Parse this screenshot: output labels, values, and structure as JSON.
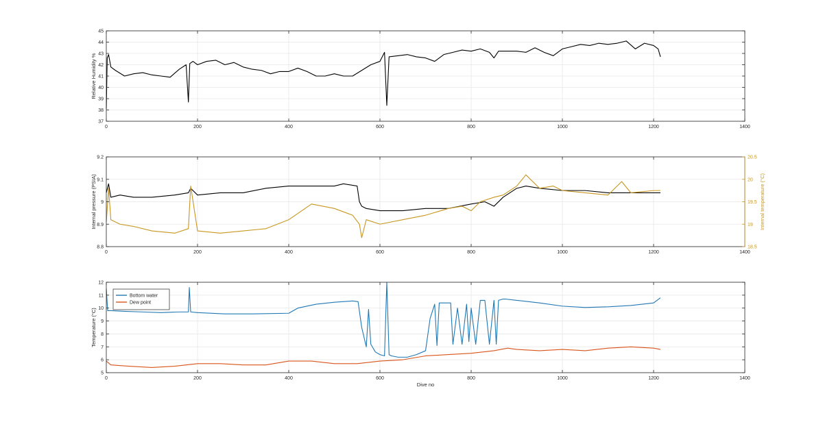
{
  "figure": {
    "colors": {
      "black": "#000000",
      "gold": "#c8961e",
      "blue": "#1f77b4",
      "orange": "#d95319",
      "axis": "#262626",
      "grid": "#e6e6e6"
    }
  },
  "chart_data": [
    {
      "type": "line",
      "title": "",
      "xlabel": "",
      "ylabel": "Relative Humidity %",
      "xlim": [
        0,
        1400
      ],
      "ylim": [
        37,
        45
      ],
      "xticks": [
        0,
        200,
        400,
        600,
        800,
        1000,
        1200,
        1400
      ],
      "yticks": [
        37,
        38,
        39,
        40,
        41,
        42,
        43,
        44,
        45
      ],
      "grid": true,
      "series": [
        {
          "color": "black",
          "x": [
            0,
            2,
            5,
            10,
            20,
            40,
            60,
            80,
            100,
            120,
            140,
            160,
            175,
            180,
            183,
            190,
            200,
            220,
            240,
            260,
            280,
            300,
            320,
            340,
            360,
            380,
            400,
            420,
            440,
            460,
            480,
            500,
            520,
            540,
            560,
            580,
            600,
            610,
            615,
            620,
            640,
            660,
            680,
            700,
            720,
            740,
            760,
            780,
            800,
            820,
            840,
            850,
            860,
            880,
            900,
            920,
            940,
            960,
            980,
            1000,
            1020,
            1040,
            1060,
            1080,
            1100,
            1120,
            1140,
            1160,
            1180,
            1200,
            1210,
            1215
          ],
          "y": [
            38.1,
            42.6,
            42.9,
            41.8,
            41.5,
            41.0,
            41.2,
            41.3,
            41.1,
            41.0,
            40.9,
            41.6,
            42.0,
            38.7,
            42.1,
            42.3,
            42.0,
            42.3,
            42.4,
            42.0,
            42.2,
            41.8,
            41.6,
            41.5,
            41.2,
            41.4,
            41.4,
            41.7,
            41.4,
            41.0,
            41.0,
            41.2,
            41.0,
            41.0,
            41.5,
            42.0,
            42.3,
            43.1,
            38.4,
            42.7,
            42.8,
            42.9,
            42.7,
            42.6,
            42.3,
            42.9,
            43.1,
            43.3,
            43.2,
            43.4,
            43.1,
            42.6,
            43.2,
            43.2,
            43.2,
            43.1,
            43.5,
            43.1,
            42.8,
            43.4,
            43.6,
            43.8,
            43.7,
            43.9,
            43.8,
            43.9,
            44.1,
            43.4,
            43.9,
            43.7,
            43.4,
            42.7
          ]
        }
      ]
    },
    {
      "type": "line",
      "title": "",
      "xlabel": "",
      "ylabel": "Internal pressure (PSIA)",
      "y2label": "Internal temperature (°C)",
      "xlim": [
        0,
        1400
      ],
      "ylim": [
        8.8,
        9.2
      ],
      "y2lim": [
        18.5,
        20.5
      ],
      "xticks": [
        0,
        200,
        400,
        600,
        800,
        1000,
        1200,
        1400
      ],
      "yticks": [
        8.8,
        8.9,
        9,
        9.1,
        9.2
      ],
      "y2ticks": [
        18.5,
        19,
        19.5,
        20,
        20.5
      ],
      "grid": true,
      "series": [
        {
          "color": "black",
          "axis": "left",
          "x": [
            0,
            5,
            10,
            30,
            60,
            100,
            150,
            180,
            185,
            200,
            250,
            300,
            350,
            400,
            450,
            500,
            520,
            550,
            555,
            560,
            570,
            600,
            650,
            700,
            750,
            800,
            830,
            850,
            870,
            900,
            920,
            950,
            1000,
            1050,
            1100,
            1150,
            1200,
            1215
          ],
          "y": [
            9.04,
            9.08,
            9.02,
            9.03,
            9.02,
            9.02,
            9.03,
            9.04,
            9.06,
            9.03,
            9.04,
            9.04,
            9.06,
            9.07,
            9.07,
            9.07,
            9.08,
            9.07,
            9.0,
            8.98,
            8.97,
            8.96,
            8.96,
            8.97,
            8.97,
            8.99,
            9.0,
            8.98,
            9.02,
            9.06,
            9.07,
            9.06,
            9.05,
            9.05,
            9.04,
            9.04,
            9.04,
            9.04
          ]
        },
        {
          "color": "gold",
          "axis": "right",
          "x": [
            0,
            5,
            10,
            30,
            60,
            100,
            150,
            180,
            185,
            200,
            250,
            300,
            350,
            400,
            450,
            500,
            540,
            555,
            560,
            570,
            600,
            650,
            700,
            750,
            780,
            800,
            820,
            850,
            870,
            900,
            920,
            950,
            980,
            1000,
            1050,
            1100,
            1130,
            1150,
            1200,
            1215
          ],
          "y": [
            19.05,
            19.8,
            19.1,
            19.0,
            18.95,
            18.85,
            18.8,
            18.9,
            19.85,
            18.85,
            18.8,
            18.85,
            18.9,
            19.1,
            19.45,
            19.35,
            19.2,
            19.0,
            18.7,
            19.1,
            19.0,
            19.1,
            19.2,
            19.35,
            19.4,
            19.3,
            19.5,
            19.6,
            19.65,
            19.85,
            20.1,
            19.8,
            19.85,
            19.75,
            19.7,
            19.65,
            19.95,
            19.7,
            19.75,
            19.75
          ]
        }
      ]
    },
    {
      "type": "line",
      "title": "",
      "xlabel": "Dive no",
      "ylabel": "Temperature (°C)",
      "xlim": [
        0,
        1400
      ],
      "ylim": [
        5,
        12
      ],
      "xticks": [
        0,
        200,
        400,
        600,
        800,
        1000,
        1200,
        1400
      ],
      "yticks": [
        5,
        6,
        7,
        8,
        9,
        10,
        11,
        12
      ],
      "grid": true,
      "legend_position": "top-left",
      "series": [
        {
          "name": "Bottom water",
          "color": "blue",
          "x": [
            0,
            3,
            10,
            40,
            80,
            120,
            160,
            180,
            182,
            185,
            200,
            260,
            320,
            400,
            420,
            460,
            500,
            540,
            552,
            560,
            570,
            575,
            580,
            590,
            600,
            610,
            615,
            620,
            625,
            640,
            660,
            680,
            700,
            710,
            720,
            725,
            730,
            740,
            755,
            760,
            770,
            780,
            790,
            795,
            800,
            810,
            820,
            830,
            840,
            850,
            855,
            860,
            870,
            875,
            900,
            950,
            1000,
            1050,
            1100,
            1150,
            1200,
            1215
          ],
          "y": [
            11.5,
            9.8,
            9.8,
            9.75,
            9.7,
            9.65,
            9.7,
            9.7,
            11.6,
            9.7,
            9.65,
            9.55,
            9.55,
            9.6,
            10.0,
            10.3,
            10.45,
            10.55,
            10.5,
            8.5,
            7.0,
            9.9,
            7.2,
            6.6,
            6.4,
            6.3,
            12.0,
            6.4,
            6.3,
            6.2,
            6.2,
            6.4,
            6.7,
            9.2,
            10.3,
            7.1,
            10.4,
            10.4,
            10.4,
            7.2,
            10.0,
            7.2,
            10.3,
            7.4,
            10.0,
            7.2,
            10.6,
            10.6,
            7.2,
            10.6,
            7.2,
            10.6,
            10.7,
            10.7,
            10.6,
            10.4,
            10.15,
            10.05,
            10.1,
            10.2,
            10.4,
            10.8
          ]
        },
        {
          "name": "Dew point",
          "color": "orange",
          "x": [
            0,
            10,
            50,
            100,
            150,
            200,
            250,
            300,
            350,
            400,
            450,
            500,
            550,
            600,
            650,
            700,
            750,
            800,
            850,
            880,
            900,
            950,
            1000,
            1050,
            1100,
            1150,
            1200,
            1215
          ],
          "y": [
            5.9,
            5.6,
            5.5,
            5.4,
            5.5,
            5.7,
            5.7,
            5.6,
            5.6,
            5.9,
            5.9,
            5.7,
            5.7,
            5.9,
            6.0,
            6.3,
            6.4,
            6.5,
            6.7,
            6.9,
            6.8,
            6.7,
            6.8,
            6.7,
            6.9,
            7.0,
            6.9,
            6.8
          ]
        }
      ]
    }
  ]
}
